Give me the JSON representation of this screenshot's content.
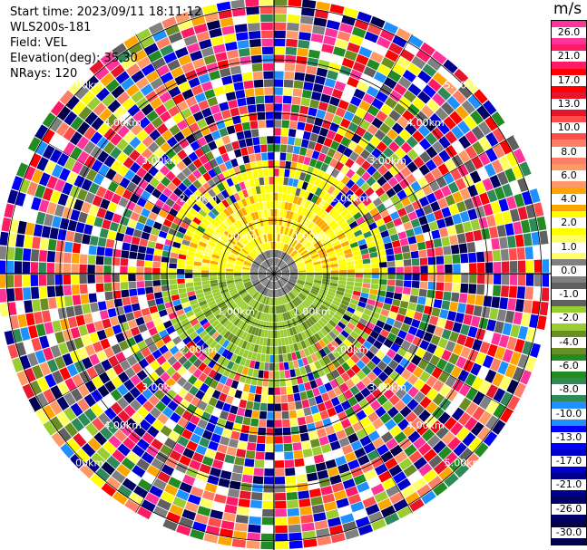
{
  "info": {
    "start_time": "Start time: 2023/09/11 18:11:12",
    "instrument": "WLS200s-181",
    "field": "Field: VEL",
    "elevation": "Elevation(deg): 35.30",
    "nrays": "NRays: 120"
  },
  "colorbar": {
    "unit": "m/s",
    "ticks": [
      "26.0",
      "21.0",
      "17.0",
      "13.0",
      "10.0",
      "8.0",
      "6.0",
      "4.0",
      "2.0",
      "1.0",
      "0.0",
      "-1.0",
      "-2.0",
      "-4.0",
      "-6.0",
      "-8.0",
      "-10.0",
      "-13.0",
      "-17.0",
      "-21.0",
      "-26.0",
      "-30.0"
    ],
    "colors": [
      "#ff3399",
      "#ff1a66",
      "#ff0000",
      "#e8142a",
      "#ff4d4d",
      "#ff7f66",
      "#ff9966",
      "#ffa500",
      "#ffff00",
      "#ffff66",
      "#808080",
      "#606060",
      "#9acd32",
      "#6b8e23",
      "#228b22",
      "#2e8b57",
      "#1e90ff",
      "#0000ff",
      "#0000cd",
      "#00008b",
      "#000066",
      "#00004d"
    ]
  },
  "chart_data": {
    "type": "ppi",
    "field": "VEL",
    "unit": "m/s",
    "nrays": 120,
    "elevation_deg": 35.3,
    "range_ring_labels": [
      "1.00km",
      "2.00km",
      "3.00km",
      "4.00km",
      "5.00km"
    ],
    "grid": true
  }
}
